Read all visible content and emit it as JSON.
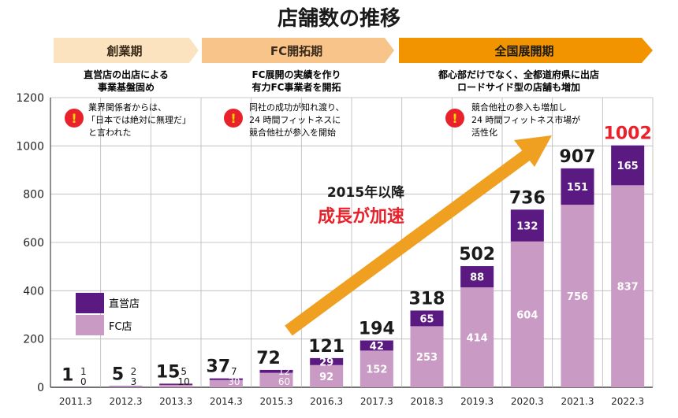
{
  "chart_data": {
    "type": "bar",
    "title": "店舗数の推移",
    "categories": [
      "2011.3",
      "2012.3",
      "2013.3",
      "2014.3",
      "2015.3",
      "2016.3",
      "2017.3",
      "2018.3",
      "2019.3",
      "2020.3",
      "2021.3",
      "2022.3"
    ],
    "series": [
      {
        "name": "直営店",
        "values": [
          1,
          2,
          5,
          7,
          12,
          29,
          42,
          65,
          88,
          132,
          151,
          165
        ]
      },
      {
        "name": "FC店",
        "values": [
          0,
          3,
          10,
          30,
          60,
          92,
          152,
          253,
          414,
          604,
          756,
          837
        ]
      }
    ],
    "totals": [
      1,
      5,
      15,
      37,
      72,
      121,
      194,
      318,
      502,
      736,
      907,
      1002
    ],
    "ylim": [
      0,
      1200
    ],
    "yticks": [
      0,
      200,
      400,
      600,
      800,
      1000,
      1200
    ],
    "grid": true,
    "legend_position": "bottom-left",
    "colors": {
      "直営店": "#5b1a82",
      "FC店": "#c89ac4",
      "arrow": "#f0a020",
      "highlight_total": "#e8212b"
    },
    "phases": [
      {
        "label": "創業期",
        "desc_lines": [
          "直営店の出店による",
          "事業基盤固め"
        ],
        "note_lines": [
          "業界関係者からは、",
          "「日本では絶対に無理だ」",
          "と言われた"
        ],
        "color": "#fbe3bf"
      },
      {
        "label": "FC開拓期",
        "desc_lines": [
          "FC展開の実績を作り",
          "有力FC事業者を開拓"
        ],
        "note_lines": [
          "同社の成功が知れ渡り、",
          "24 時間フィットネスに",
          "競合他社が参入を開始"
        ],
        "color": "#f8c48a"
      },
      {
        "label": "全国展開期",
        "desc_lines": [
          "都心部だけでなく、全都道府県に出店",
          "ロードサイド型の店舗も増加"
        ],
        "note_lines": [
          "競合他社の参入も増加し",
          "24 時間フィットネス市場が",
          "活性化"
        ],
        "color": "#f29400"
      }
    ],
    "annotation": {
      "line1": "2015年以降",
      "line2": "成長が加速"
    },
    "note_mark": "!"
  }
}
